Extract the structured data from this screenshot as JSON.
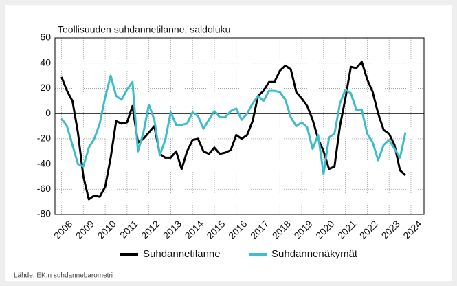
{
  "chart_data": {
    "type": "line",
    "title": "Teollisuuden suhdannetilanne, saldoluku",
    "source": "Lähde: EK:n suhdannebarometri",
    "x": [
      2008,
      2008.25,
      2008.5,
      2008.75,
      2009,
      2009.25,
      2009.5,
      2009.75,
      2010,
      2010.25,
      2010.5,
      2010.75,
      2011,
      2011.25,
      2011.5,
      2011.75,
      2012,
      2012.25,
      2012.5,
      2012.75,
      2013,
      2013.25,
      2013.5,
      2013.75,
      2014,
      2014.25,
      2014.5,
      2014.75,
      2015,
      2015.25,
      2015.5,
      2015.75,
      2016,
      2016.25,
      2016.5,
      2016.75,
      2017,
      2017.25,
      2017.5,
      2017.75,
      2018,
      2018.25,
      2018.5,
      2018.75,
      2019,
      2019.25,
      2019.5,
      2019.75,
      2020,
      2020.25,
      2020.5,
      2020.75,
      2021,
      2021.25,
      2021.5,
      2021.75,
      2022,
      2022.25,
      2022.5,
      2022.75,
      2023,
      2023.25,
      2023.5,
      2023.75
    ],
    "series": [
      {
        "name": "Suhdannetilanne",
        "color": "#000000",
        "values": [
          29,
          18,
          10,
          -15,
          -50,
          -68,
          -65,
          -66,
          -58,
          -35,
          -6,
          -8,
          -7,
          6,
          -23,
          -20,
          -15,
          -10,
          -32,
          -35,
          -35,
          -30,
          -44,
          -30,
          -21,
          -20,
          -30,
          -32,
          -27,
          -32,
          -31,
          -29,
          -17,
          -20,
          -17,
          -6,
          14,
          18,
          25,
          25,
          34,
          38,
          35,
          17,
          12,
          6,
          -5,
          -20,
          -30,
          -44,
          -42,
          -10,
          12,
          37,
          36,
          41,
          27,
          17,
          0,
          -13,
          -16,
          -25,
          -45,
          -49
        ]
      },
      {
        "name": "Suhdannenäkymät",
        "color": "#3dbdcc",
        "values": [
          -4,
          -10,
          -25,
          -40,
          -42,
          -27,
          -20,
          -8,
          13,
          30,
          14,
          11,
          19,
          25,
          -30,
          -15,
          7,
          -5,
          -33,
          -21,
          1,
          -9,
          -9,
          -8,
          1,
          -2,
          -12,
          -5,
          2,
          -3,
          -3,
          2,
          4,
          -5,
          0,
          8,
          14,
          10,
          18,
          18,
          17,
          11,
          -3,
          -10,
          -7,
          -11,
          -28,
          -17,
          -48,
          -19,
          -16,
          8,
          19,
          16,
          3,
          3,
          -16,
          -23,
          -37,
          -25,
          -21,
          -28,
          -35,
          -15
        ]
      }
    ],
    "xlim": [
      2007.7,
      2024.6
    ],
    "xticks": [
      2008,
      2009,
      2010,
      2011,
      2012,
      2013,
      2014,
      2015,
      2016,
      2017,
      2018,
      2019,
      2020,
      2021,
      2022,
      2023,
      2024
    ],
    "ylim": [
      -80,
      60
    ],
    "yticks": [
      -80,
      -60,
      -40,
      -20,
      0,
      20,
      40,
      60
    ],
    "grid": true
  }
}
